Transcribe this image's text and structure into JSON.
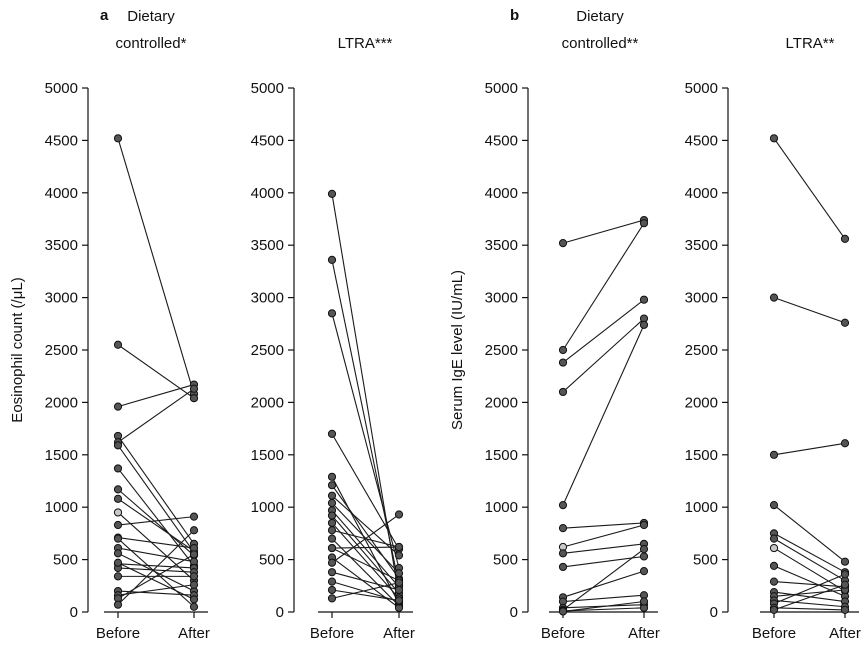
{
  "figure": {
    "panels": [
      {
        "letter": "a",
        "ylabel": "Eosinophil count (/μL)"
      },
      {
        "letter": "b",
        "ylabel": "Serum IgE level (IU/mL)"
      }
    ]
  },
  "chart_data": [
    {
      "type": "line",
      "panel": "a",
      "title_lines": [
        "Dietary",
        "controlled*"
      ],
      "xlabel": "",
      "ylabel": "Eosinophil count (/μL)",
      "categories": [
        "Before",
        "After"
      ],
      "ylim": [
        0,
        5000
      ],
      "yticks": [
        0,
        500,
        1000,
        1500,
        2000,
        2500,
        3000,
        3500,
        4000,
        4500,
        5000
      ],
      "grid": false,
      "pairs": [
        [
          4520,
          2080
        ],
        [
          2550,
          2040
        ],
        [
          1960,
          2170
        ],
        [
          1680,
          650
        ],
        [
          1620,
          2130
        ],
        [
          1590,
          570
        ],
        [
          1370,
          440
        ],
        [
          1170,
          540
        ],
        [
          1080,
          580
        ],
        [
          950,
          300
        ],
        [
          830,
          910
        ],
        [
          710,
          610
        ],
        [
          610,
          480
        ],
        [
          560,
          200
        ],
        [
          460,
          420
        ],
        [
          420,
          380
        ],
        [
          340,
          340
        ],
        [
          200,
          160
        ],
        [
          160,
          260
        ],
        [
          130,
          550
        ],
        [
          70,
          780
        ],
        [
          700,
          50
        ],
        [
          470,
          120
        ]
      ],
      "highlighted_before_index": 9
    },
    {
      "type": "line",
      "panel": "a",
      "title_lines": [
        "",
        "LTRA***"
      ],
      "xlabel": "",
      "ylabel": "",
      "categories": [
        "Before",
        "After"
      ],
      "ylim": [
        0,
        5000
      ],
      "yticks": [
        0,
        500,
        1000,
        1500,
        2000,
        2500,
        3000,
        3500,
        4000,
        4500,
        5000
      ],
      "grid": false,
      "pairs": [
        [
          3990,
          150
        ],
        [
          3360,
          260
        ],
        [
          2850,
          420
        ],
        [
          1700,
          600
        ],
        [
          1290,
          80
        ],
        [
          1210,
          320
        ],
        [
          1110,
          540
        ],
        [
          1040,
          370
        ],
        [
          970,
          240
        ],
        [
          920,
          180
        ],
        [
          850,
          130
        ],
        [
          780,
          620
        ],
        [
          700,
          60
        ],
        [
          610,
          300
        ],
        [
          520,
          40
        ],
        [
          470,
          930
        ],
        [
          380,
          210
        ],
        [
          290,
          100
        ],
        [
          210,
          110
        ],
        [
          130,
          280
        ],
        [
          610,
          620
        ]
      ],
      "highlighted_before_index": -1
    },
    {
      "type": "line",
      "panel": "b",
      "title_lines": [
        "Dietary",
        "controlled**"
      ],
      "xlabel": "",
      "ylabel": "Serum IgE level (IU/mL)",
      "categories": [
        "Before",
        "After"
      ],
      "ylim": [
        0,
        5000
      ],
      "yticks": [
        0,
        500,
        1000,
        1500,
        2000,
        2500,
        3000,
        3500,
        4000,
        4500,
        5000
      ],
      "grid": false,
      "pairs": [
        [
          3520,
          3740
        ],
        [
          2500,
          3710
        ],
        [
          2380,
          2980
        ],
        [
          2100,
          2800
        ],
        [
          1020,
          2740
        ],
        [
          800,
          850
        ],
        [
          620,
          830
        ],
        [
          560,
          650
        ],
        [
          430,
          530
        ],
        [
          140,
          390
        ],
        [
          100,
          160
        ],
        [
          40,
          70
        ],
        [
          20,
          600
        ],
        [
          10,
          40
        ],
        [
          5,
          100
        ]
      ],
      "highlighted_before_index": 6
    },
    {
      "type": "line",
      "panel": "b",
      "title_lines": [
        "",
        "LTRA**"
      ],
      "xlabel": "",
      "ylabel": "",
      "categories": [
        "Before",
        "After"
      ],
      "ylim": [
        0,
        5000
      ],
      "yticks": [
        0,
        500,
        1000,
        1500,
        2000,
        2500,
        3000,
        3500,
        4000,
        4500,
        5000
      ],
      "grid": false,
      "pairs": [
        [
          4520,
          3560
        ],
        [
          3000,
          2760
        ],
        [
          1500,
          1610
        ],
        [
          1020,
          480
        ],
        [
          750,
          380
        ],
        [
          700,
          300
        ],
        [
          610,
          200
        ],
        [
          440,
          150
        ],
        [
          290,
          240
        ],
        [
          190,
          100
        ],
        [
          150,
          210
        ],
        [
          110,
          50
        ],
        [
          80,
          360
        ],
        [
          40,
          20
        ],
        [
          20,
          260
        ]
      ],
      "highlighted_before_index": 6
    }
  ]
}
